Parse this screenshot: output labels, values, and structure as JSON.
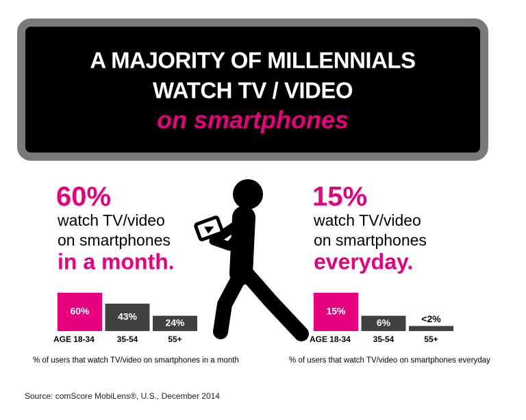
{
  "header": {
    "line1": "A MAJORITY OF MILLENNIALS",
    "line2": "WATCH TV / VIDEO",
    "line3": "on smartphones"
  },
  "chart_data": [
    {
      "type": "bar",
      "headline": "60%",
      "description_line1": "watch TV/video",
      "description_line2": "on smartphones",
      "emphasis": "in a month.",
      "axis_prefix": "AGE",
      "categories": [
        "18-34",
        "35-54",
        "55+"
      ],
      "values": [
        60,
        43,
        24
      ],
      "value_labels": [
        "60%",
        "43%",
        "24%"
      ],
      "colors": [
        "#e6007e",
        "#414042",
        "#414042"
      ],
      "ylim": [
        0,
        60
      ],
      "caption": "% of users that watch TV/video on smartphones in a month"
    },
    {
      "type": "bar",
      "headline": "15%",
      "description_line1": "watch TV/video",
      "description_line2": "on smartphones",
      "emphasis": "everyday.",
      "axis_prefix": "AGE",
      "categories": [
        "18-34",
        "35-54",
        "55+"
      ],
      "values": [
        15,
        6,
        2
      ],
      "value_labels": [
        "15%",
        "6%",
        "<2%"
      ],
      "colors": [
        "#e6007e",
        "#414042",
        "#414042"
      ],
      "ylim": [
        0,
        15
      ],
      "caption": "% of users that watch TV/video on smartphones everyday"
    }
  ],
  "source": "Source: comScore MobiLens®, U.S., December 2014"
}
